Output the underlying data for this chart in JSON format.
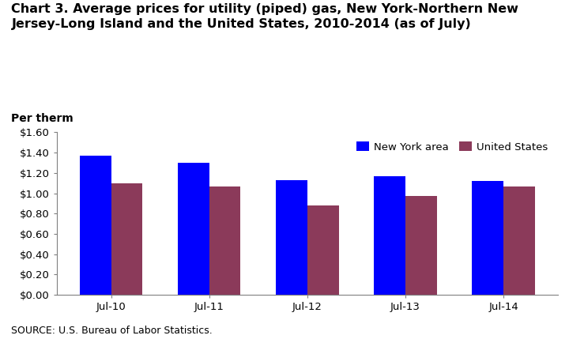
{
  "title": "Chart 3. Average prices for utility (piped) gas, New York-Northern New\nJersey-Long Island and the United States, 2010-2014 (as of July)",
  "per_therm_label": "Per therm",
  "source": "SOURCE: U.S. Bureau of Labor Statistics.",
  "categories": [
    "Jul-10",
    "Jul-11",
    "Jul-12",
    "Jul-13",
    "Jul-14"
  ],
  "ny_values": [
    1.37,
    1.3,
    1.13,
    1.17,
    1.12
  ],
  "us_values": [
    1.1,
    1.07,
    0.88,
    0.97,
    1.07
  ],
  "ny_color": "#0000FF",
  "us_color": "#8B3A5A",
  "ylim": [
    0.0,
    1.6
  ],
  "yticks": [
    0.0,
    0.2,
    0.4,
    0.6,
    0.8,
    1.0,
    1.2,
    1.4,
    1.6
  ],
  "ytick_labels": [
    "$0.00",
    "$0.20",
    "$0.40",
    "$0.60",
    "$0.80",
    "$1.00",
    "$1.20",
    "$1.40",
    "$1.60"
  ],
  "legend_ny": "New York area",
  "legend_us": "United States",
  "bar_width": 0.32,
  "title_fontsize": 11.5,
  "tick_fontsize": 9.5,
  "per_therm_fontsize": 10,
  "source_fontsize": 9,
  "legend_fontsize": 9.5,
  "background_color": "#ffffff"
}
